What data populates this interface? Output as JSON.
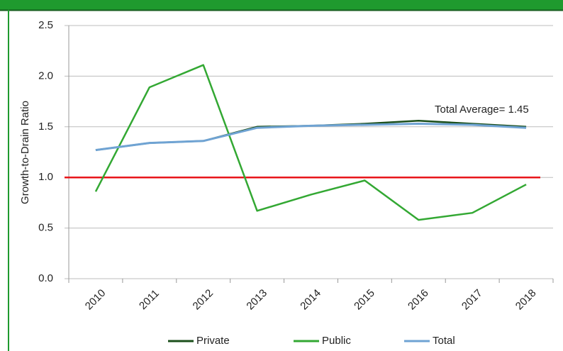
{
  "chart_data": {
    "type": "line",
    "y_label": "Growth-to-Drain Ratio",
    "categories": [
      "2010",
      "2011",
      "2012",
      "2013",
      "2014",
      "2015",
      "2016",
      "2017",
      "2018"
    ],
    "series": [
      {
        "name": "Private",
        "color": "#1b4f1b",
        "values": [
          1.27,
          1.34,
          1.36,
          1.5,
          1.51,
          1.53,
          1.56,
          1.53,
          1.5
        ]
      },
      {
        "name": "Public",
        "color": "#33a833",
        "values": [
          0.86,
          1.89,
          2.11,
          0.67,
          0.83,
          0.97,
          0.58,
          0.65,
          0.93
        ]
      },
      {
        "name": "Total",
        "color": "#6fa3d3",
        "values": [
          1.27,
          1.34,
          1.36,
          1.49,
          1.51,
          1.52,
          1.53,
          1.52,
          1.49
        ]
      }
    ],
    "reference_line": {
      "value": 1,
      "color": "#e8161b"
    },
    "annotation": "Total Average= 1.45",
    "ylim": [
      0,
      2.5
    ],
    "yticks": [
      {
        "value": 0,
        "label": "0.0"
      },
      0.5,
      {
        "value": 1,
        "label": "1.0"
      },
      1.5,
      {
        "value": 2,
        "label": "2.0"
      },
      2.5
    ],
    "grid": true
  }
}
